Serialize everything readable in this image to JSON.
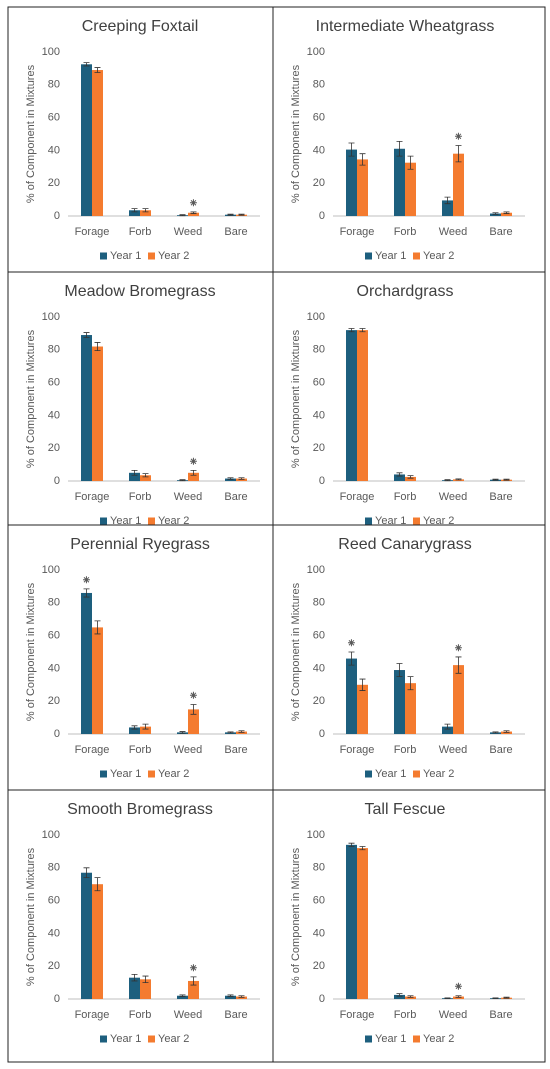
{
  "chart_data": [
    {
      "type": "bar",
      "title": "Creeping Foxtail",
      "y_label": "% of Component in Mixtures",
      "categories": [
        "Forage",
        "Forb",
        "Weed",
        "Bare"
      ],
      "ylim": [
        0,
        100
      ],
      "yticks": [
        0,
        20,
        40,
        60,
        80,
        100
      ],
      "grid": false,
      "legend": "bottom",
      "series": [
        {
          "name": "Year 1",
          "color": "#1d5f7e",
          "values": [
            92.5,
            3.5,
            0.5,
            0.8
          ],
          "errors": [
            1,
            1,
            0.3,
            0.3
          ]
        },
        {
          "name": "Year 2",
          "color": "#f47b2f",
          "values": [
            89,
            3.5,
            2,
            0.8
          ],
          "errors": [
            1.5,
            1,
            0.5,
            0.3
          ]
        }
      ],
      "annotations": [
        {
          "text": "⁕",
          "series": 1,
          "index": 2
        }
      ]
    },
    {
      "type": "bar",
      "title": "Intermediate Wheatgrass",
      "y_label": "% of Component in Mixtures",
      "categories": [
        "Forage",
        "Forb",
        "Weed",
        "Bare"
      ],
      "ylim": [
        0,
        100
      ],
      "yticks": [
        0,
        20,
        40,
        60,
        80,
        100
      ],
      "grid": false,
      "legend": "bottom",
      "series": [
        {
          "name": "Year 1",
          "color": "#1d5f7e",
          "values": [
            40.5,
            41,
            9.5,
            1.5
          ],
          "errors": [
            4,
            4.5,
            2,
            0.5
          ]
        },
        {
          "name": "Year 2",
          "color": "#f47b2f",
          "values": [
            34.5,
            32.5,
            38,
            2
          ],
          "errors": [
            3.5,
            4,
            5,
            0.5
          ]
        }
      ],
      "annotations": [
        {
          "text": "⁕",
          "series": 1,
          "index": 2
        }
      ]
    },
    {
      "type": "bar",
      "title": "Meadow Bromegrass",
      "y_label": "% of Component in Mixtures",
      "categories": [
        "Forage",
        "Forb",
        "Weed",
        "Bare"
      ],
      "ylim": [
        0,
        100
      ],
      "yticks": [
        0,
        20,
        40,
        60,
        80,
        100
      ],
      "grid": false,
      "legend": "bottom",
      "series": [
        {
          "name": "Year 1",
          "color": "#1d5f7e",
          "values": [
            89,
            5,
            0.5,
            1.5
          ],
          "errors": [
            1.5,
            1.5,
            0.3,
            0.5
          ]
        },
        {
          "name": "Year 2",
          "color": "#f47b2f",
          "values": [
            82,
            3.5,
            5,
            1.5
          ],
          "errors": [
            2.5,
            1,
            1.5,
            0.5
          ]
        }
      ],
      "annotations": [
        {
          "text": "⁕",
          "series": 1,
          "index": 2
        }
      ]
    },
    {
      "type": "bar",
      "title": "Orchardgrass",
      "y_label": "% of Component in Mixtures",
      "categories": [
        "Forage",
        "Forb",
        "Weed",
        "Bare"
      ],
      "ylim": [
        0,
        100
      ],
      "yticks": [
        0,
        20,
        40,
        60,
        80,
        100
      ],
      "grid": false,
      "legend": "bottom",
      "series": [
        {
          "name": "Year 1",
          "color": "#1d5f7e",
          "values": [
            92,
            4,
            0.5,
            0.8
          ],
          "errors": [
            1,
            1,
            0.3,
            0.3
          ]
        },
        {
          "name": "Year 2",
          "color": "#f47b2f",
          "values": [
            92,
            2.5,
            1,
            0.8
          ],
          "errors": [
            1,
            0.8,
            0.3,
            0.3
          ]
        }
      ],
      "annotations": []
    },
    {
      "type": "bar",
      "title": "Perennial Ryegrass",
      "y_label": "% of Component in Mixtures",
      "categories": [
        "Forage",
        "Forb",
        "Weed",
        "Bare"
      ],
      "ylim": [
        0,
        100
      ],
      "yticks": [
        0,
        20,
        40,
        60,
        80,
        100
      ],
      "grid": false,
      "legend": "bottom",
      "series": [
        {
          "name": "Year 1",
          "color": "#1d5f7e",
          "values": [
            86,
            4,
            1,
            1
          ],
          "errors": [
            2.5,
            1,
            0.5,
            0.3
          ]
        },
        {
          "name": "Year 2",
          "color": "#f47b2f",
          "values": [
            65,
            4.5,
            15,
            1.5
          ],
          "errors": [
            4,
            1.5,
            3,
            0.5
          ]
        }
      ],
      "annotations": [
        {
          "text": "⁕",
          "series": 0,
          "index": 0
        },
        {
          "text": "⁕",
          "series": 1,
          "index": 2
        }
      ]
    },
    {
      "type": "bar",
      "title": "Reed Canarygrass",
      "y_label": "% of Component in Mixtures",
      "categories": [
        "Forage",
        "Forb",
        "Weed",
        "Bare"
      ],
      "ylim": [
        0,
        100
      ],
      "yticks": [
        0,
        20,
        40,
        60,
        80,
        100
      ],
      "grid": false,
      "legend": "bottom",
      "series": [
        {
          "name": "Year 1",
          "color": "#1d5f7e",
          "values": [
            46,
            39,
            4.5,
            1
          ],
          "errors": [
            4,
            4,
            1.5,
            0.3
          ]
        },
        {
          "name": "Year 2",
          "color": "#f47b2f",
          "values": [
            30,
            31,
            42,
            1.5
          ],
          "errors": [
            3.5,
            4,
            5,
            0.5
          ]
        }
      ],
      "annotations": [
        {
          "text": "⁕",
          "series": 0,
          "index": 0
        },
        {
          "text": "⁕",
          "series": 1,
          "index": 2
        }
      ]
    },
    {
      "type": "bar",
      "title": "Smooth Bromegrass",
      "y_label": "% of Component in Mixtures",
      "categories": [
        "Forage",
        "Forb",
        "Weed",
        "Bare"
      ],
      "ylim": [
        0,
        100
      ],
      "yticks": [
        0,
        20,
        40,
        60,
        80,
        100
      ],
      "grid": false,
      "legend": "bottom",
      "series": [
        {
          "name": "Year 1",
          "color": "#1d5f7e",
          "values": [
            77,
            13,
            2,
            2
          ],
          "errors": [
            3,
            2,
            0.5,
            0.5
          ]
        },
        {
          "name": "Year 2",
          "color": "#f47b2f",
          "values": [
            70,
            12,
            11,
            1.5
          ],
          "errors": [
            4,
            2,
            2.5,
            0.5
          ]
        }
      ],
      "annotations": [
        {
          "text": "⁕",
          "series": 1,
          "index": 2
        }
      ]
    },
    {
      "type": "bar",
      "title": "Tall Fescue",
      "y_label": "% of Component in Mixtures",
      "categories": [
        "Forage",
        "Forb",
        "Weed",
        "Bare"
      ],
      "ylim": [
        0,
        100
      ],
      "yticks": [
        0,
        20,
        40,
        60,
        80,
        100
      ],
      "grid": false,
      "legend": "bottom",
      "series": [
        {
          "name": "Year 1",
          "color": "#1d5f7e",
          "values": [
            94,
            2.5,
            0.5,
            0.5
          ],
          "errors": [
            1,
            0.8,
            0.2,
            0.2
          ]
        },
        {
          "name": "Year 2",
          "color": "#f47b2f",
          "values": [
            92,
            1.5,
            1.5,
            0.8
          ],
          "errors": [
            1,
            0.5,
            0.5,
            0.3
          ]
        }
      ],
      "annotations": [
        {
          "text": "⁕",
          "series": 1,
          "index": 2
        }
      ]
    }
  ]
}
